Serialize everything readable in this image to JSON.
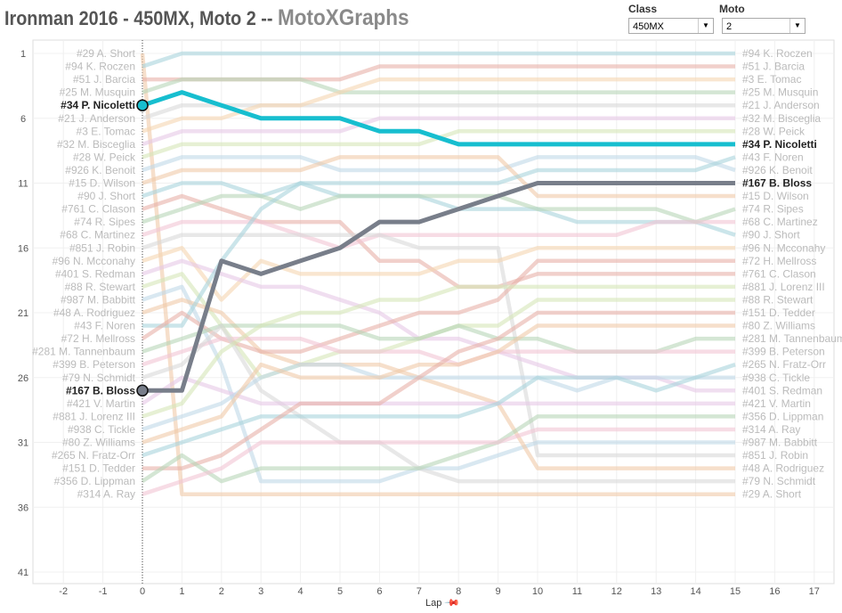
{
  "header": {
    "title": "Ironman 2016 - 450MX, Moto 2 --",
    "brand": "MotoXGraphs"
  },
  "filters": {
    "class_label": "Class",
    "class_value": "450MX",
    "moto_label": "Moto",
    "moto_value": "2"
  },
  "colors": {
    "highlight1": "#17becf",
    "highlight2": "#787e8a",
    "palette": [
      "#f0c9a8",
      "#a8d3dc",
      "#e8b0a8",
      "#b8d6b8",
      "#f2c4d4",
      "#d8d8d8",
      "#f5d6b0",
      "#e6c8e6",
      "#d6e6b8",
      "#c0d8e8"
    ]
  },
  "chart_data": {
    "type": "line",
    "title": "Ironman 2016 - 450MX, Moto 2",
    "xlabel": "Lap",
    "ylabel": "",
    "xlim": [
      -2.5,
      17.5
    ],
    "ylim": [
      1,
      41
    ],
    "xticks": [
      -2,
      -1,
      0,
      1,
      2,
      3,
      4,
      5,
      6,
      7,
      8,
      9,
      10,
      11,
      12,
      13,
      14,
      15,
      16,
      17
    ],
    "yticks": [
      1,
      6,
      11,
      16,
      21,
      26,
      31,
      36,
      41
    ],
    "laps": [
      0,
      1,
      2,
      3,
      4,
      5,
      6,
      7,
      8,
      9,
      10,
      11,
      12,
      13,
      14,
      15
    ],
    "highlighted": [
      "#34 P. Nicoletti",
      "#167 B. Bloss"
    ],
    "series": [
      {
        "name": "#29 A. Short",
        "positions": [
          1,
          35,
          35,
          35,
          35,
          35,
          35,
          35,
          35,
          35,
          35,
          35,
          35,
          35,
          35,
          35
        ]
      },
      {
        "name": "#94 K. Roczen",
        "positions": [
          2,
          1,
          1,
          1,
          1,
          1,
          1,
          1,
          1,
          1,
          1,
          1,
          1,
          1,
          1,
          1
        ]
      },
      {
        "name": "#51 J. Barcia",
        "positions": [
          3,
          3,
          3,
          3,
          3,
          3,
          2,
          2,
          2,
          2,
          2,
          2,
          2,
          2,
          2,
          2
        ]
      },
      {
        "name": "#25 M. Musquin",
        "positions": [
          4,
          3,
          3,
          3,
          3,
          4,
          4,
          4,
          4,
          4,
          4,
          4,
          4,
          4,
          4,
          4
        ]
      },
      {
        "name": "#34 P. Nicoletti",
        "positions": [
          5,
          4,
          5,
          6,
          6,
          6,
          7,
          7,
          8,
          8,
          8,
          8,
          8,
          8,
          8,
          8
        ]
      },
      {
        "name": "#21 J. Anderson",
        "positions": [
          6,
          5,
          5,
          5,
          5,
          5,
          5,
          5,
          5,
          5,
          5,
          5,
          5,
          5,
          5,
          5
        ]
      },
      {
        "name": "#3 E. Tomac",
        "positions": [
          7,
          6,
          6,
          5,
          5,
          4,
          3,
          3,
          3,
          3,
          3,
          3,
          3,
          3,
          3,
          3
        ]
      },
      {
        "name": "#32 M. Bisceglia",
        "positions": [
          8,
          7,
          7,
          7,
          7,
          7,
          6,
          6,
          6,
          6,
          6,
          6,
          6,
          6,
          6,
          6
        ]
      },
      {
        "name": "#28 W. Peick",
        "positions": [
          9,
          8,
          8,
          8,
          8,
          8,
          8,
          8,
          7,
          7,
          7,
          7,
          7,
          7,
          7,
          7
        ]
      },
      {
        "name": "#926 K. Benoit",
        "positions": [
          10,
          9,
          9,
          9,
          9,
          10,
          10,
          10,
          10,
          10,
          9,
          9,
          9,
          9,
          9,
          10
        ]
      },
      {
        "name": "#15 D. Wilson",
        "positions": [
          11,
          10,
          10,
          10,
          10,
          9,
          9,
          9,
          9,
          9,
          12,
          12,
          12,
          12,
          12,
          12
        ]
      },
      {
        "name": "#90 J. Short",
        "positions": [
          12,
          11,
          11,
          12,
          11,
          12,
          12,
          12,
          13,
          13,
          13,
          14,
          14,
          14,
          14,
          15
        ]
      },
      {
        "name": "#761 C. Clason",
        "positions": [
          13,
          12,
          13,
          14,
          14,
          14,
          17,
          17,
          19,
          19,
          18,
          18,
          18,
          18,
          18,
          18
        ]
      },
      {
        "name": "#74 R. Sipes",
        "positions": [
          14,
          13,
          12,
          12,
          13,
          12,
          12,
          12,
          12,
          12,
          13,
          13,
          13,
          13,
          14,
          13
        ]
      },
      {
        "name": "#68 C. Martinez",
        "positions": [
          15,
          14,
          14,
          14,
          15,
          16,
          15,
          15,
          15,
          15,
          15,
          15,
          15,
          14,
          14,
          14
        ]
      },
      {
        "name": "#851 J. Robin",
        "positions": [
          16,
          15,
          15,
          15,
          15,
          15,
          15,
          16,
          16,
          16,
          32,
          32,
          32,
          32,
          32,
          32
        ]
      },
      {
        "name": "#96 N. Mcconahy",
        "positions": [
          17,
          16,
          20,
          17,
          18,
          18,
          18,
          18,
          17,
          17,
          16,
          16,
          16,
          16,
          16,
          16
        ]
      },
      {
        "name": "#401 S. Redman",
        "positions": [
          18,
          17,
          18,
          19,
          19,
          20,
          21,
          23,
          23,
          24,
          25,
          26,
          26,
          26,
          27,
          27
        ]
      },
      {
        "name": "#88 R. Stewart",
        "positions": [
          19,
          18,
          22,
          26,
          25,
          24,
          24,
          23,
          22,
          22,
          20,
          20,
          20,
          20,
          20,
          20
        ]
      },
      {
        "name": "#987 M. Babbitt",
        "positions": [
          20,
          19,
          25,
          34,
          34,
          34,
          34,
          33,
          33,
          32,
          31,
          31,
          31,
          31,
          31,
          31
        ]
      },
      {
        "name": "#48 A. Rodriguez",
        "positions": [
          21,
          20,
          21,
          24,
          25,
          25,
          25,
          26,
          27,
          28,
          33,
          33,
          33,
          33,
          33,
          33
        ]
      },
      {
        "name": "#43 F. Noren",
        "positions": [
          22,
          22,
          17,
          13,
          11,
          11,
          11,
          11,
          11,
          11,
          10,
          10,
          10,
          10,
          10,
          9
        ]
      },
      {
        "name": "#72 H. Mellross",
        "positions": [
          23,
          21,
          23,
          24,
          24,
          23,
          22,
          21,
          21,
          20,
          17,
          17,
          17,
          17,
          17,
          17
        ]
      },
      {
        "name": "#281 M. Tannenbaum",
        "positions": [
          24,
          23,
          22,
          22,
          22,
          22,
          23,
          23,
          22,
          23,
          23,
          24,
          24,
          24,
          23,
          23
        ]
      },
      {
        "name": "#399 B. Peterson",
        "positions": [
          25,
          24,
          23,
          23,
          23,
          24,
          24,
          24,
          25,
          24,
          24,
          24,
          24,
          24,
          24,
          24
        ]
      },
      {
        "name": "#79 N. Schmidt",
        "positions": [
          26,
          25,
          22,
          27,
          29,
          31,
          31,
          33,
          34,
          34,
          34,
          34,
          34,
          34,
          34,
          34
        ]
      },
      {
        "name": "#167 B. Bloss",
        "positions": [
          27,
          27,
          17,
          18,
          17,
          16,
          14,
          14,
          13,
          12,
          11,
          11,
          11,
          11,
          11,
          11
        ]
      },
      {
        "name": "#421 V. Martin",
        "positions": [
          28,
          26,
          27,
          28,
          28,
          28,
          28,
          28,
          28,
          28,
          28,
          28,
          28,
          28,
          28,
          28
        ]
      },
      {
        "name": "#881 J. Lorenz III",
        "positions": [
          29,
          28,
          24,
          22,
          21,
          21,
          20,
          20,
          19,
          19,
          19,
          19,
          19,
          19,
          19,
          19
        ]
      },
      {
        "name": "#938 C. Tickle",
        "positions": [
          30,
          29,
          28,
          26,
          25,
          25,
          26,
          26,
          26,
          26,
          26,
          27,
          26,
          26,
          26,
          26
        ]
      },
      {
        "name": "#80 Z. Williams",
        "positions": [
          31,
          30,
          29,
          25,
          26,
          26,
          26,
          25,
          25,
          24,
          22,
          22,
          22,
          22,
          22,
          22
        ]
      },
      {
        "name": "#265 N. Fratz-Orr",
        "positions": [
          32,
          31,
          30,
          29,
          29,
          29,
          29,
          29,
          29,
          28,
          26,
          26,
          26,
          27,
          26,
          25
        ]
      },
      {
        "name": "#151 D. Tedder",
        "positions": [
          33,
          33,
          32,
          30,
          28,
          28,
          28,
          26,
          24,
          23,
          21,
          21,
          21,
          21,
          21,
          21
        ]
      },
      {
        "name": "#356 D. Lippman",
        "positions": [
          34,
          32,
          34,
          33,
          33,
          33,
          33,
          33,
          32,
          31,
          29,
          29,
          29,
          29,
          29,
          29
        ]
      },
      {
        "name": "#314 A. Ray",
        "positions": [
          35,
          34,
          33,
          31,
          31,
          31,
          31,
          31,
          31,
          31,
          30,
          30,
          30,
          30,
          30,
          30
        ]
      }
    ]
  }
}
